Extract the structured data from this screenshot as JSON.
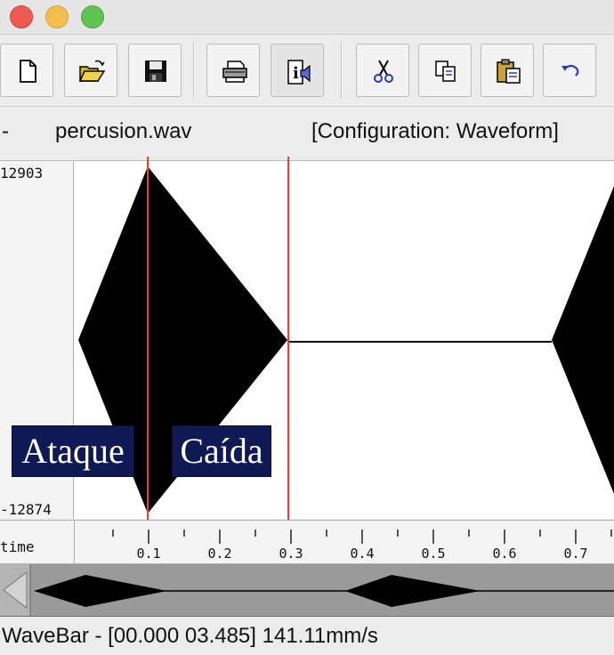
{
  "window": {
    "traffic_lights": {
      "close": "#ee5a52",
      "minimize": "#f4be4f",
      "zoom": "#5fc454"
    }
  },
  "toolbar": {
    "buttons": [
      {
        "name": "new-file-button",
        "icon": "new-document-icon"
      },
      {
        "name": "open-file-button",
        "icon": "open-folder-icon"
      },
      {
        "name": "save-file-button",
        "icon": "floppy-disk-icon"
      },
      {
        "name": "print-button",
        "icon": "printer-icon"
      },
      {
        "name": "info-button",
        "icon": "info-speaker-icon"
      },
      {
        "name": "cut-button",
        "icon": "scissors-icon"
      },
      {
        "name": "copy-button",
        "icon": "copy-icon"
      },
      {
        "name": "paste-button",
        "icon": "clipboard-icon"
      },
      {
        "name": "undo-button",
        "icon": "undo-arrow-icon"
      }
    ]
  },
  "infobar": {
    "prefix": "-",
    "filename": "percusion.wav",
    "configuration": "[Configuration: Waveform]"
  },
  "waveform": {
    "y_max": "12903",
    "y_min": "-12874",
    "color": "#000000",
    "marker_color": "#e0452b",
    "markers_s": [
      0.1,
      0.3
    ],
    "annotations": [
      {
        "text": "Ataque"
      },
      {
        "text": "Caída"
      }
    ]
  },
  "timeaxis": {
    "label": "time",
    "ticks": [
      "0.1",
      "0.2",
      "0.3",
      "0.4",
      "0.5",
      "0.6",
      "0.7"
    ]
  },
  "status": {
    "text": "WaveBar - [00.000 03.485] 141.11mm/s"
  }
}
